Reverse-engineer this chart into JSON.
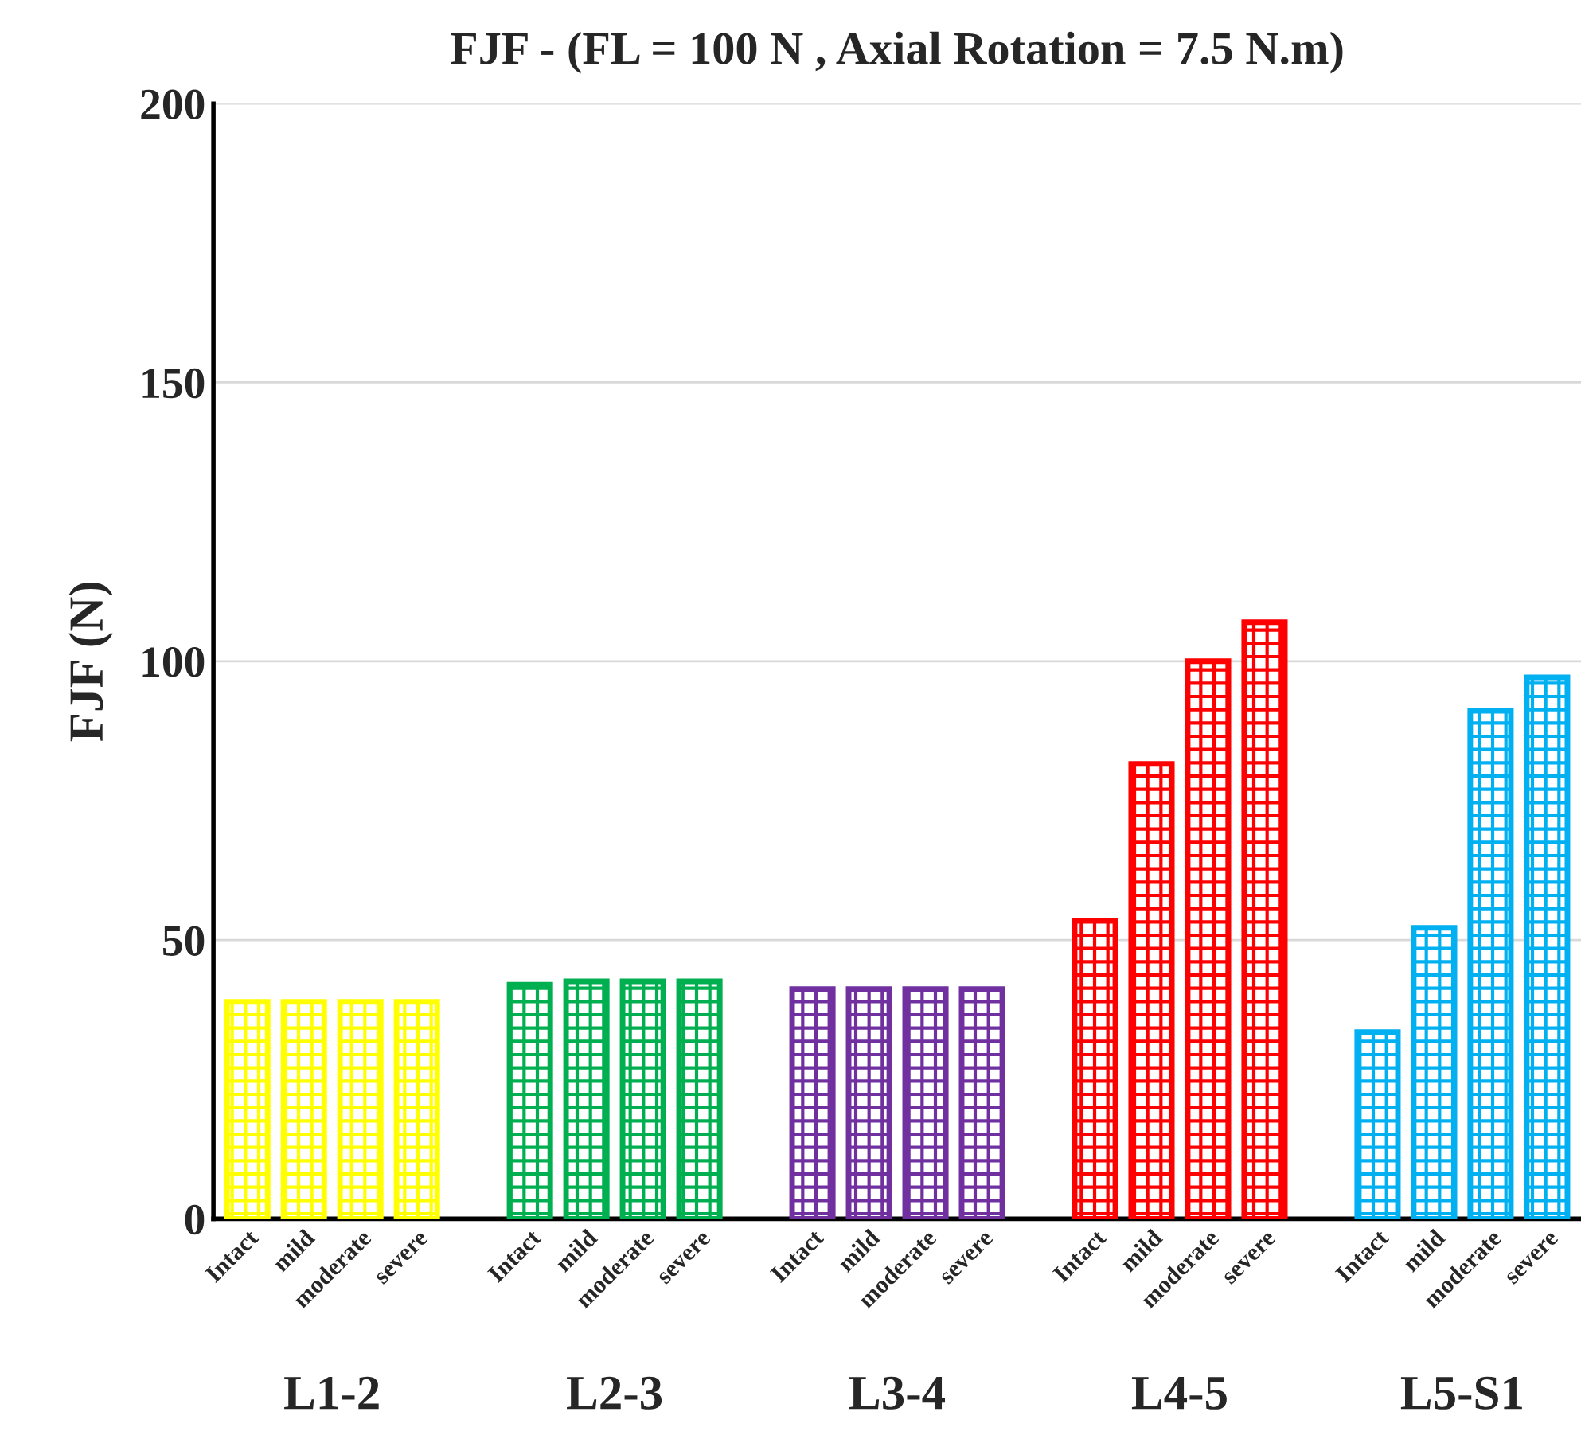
{
  "chart_data": {
    "type": "bar",
    "title": "FJF - (FL = 100 N , Axial Rotation = 7.5 N.m)",
    "ylabel": "FJF (N)",
    "categories": [
      "Intact",
      "mild",
      "moderate",
      "severe",
      null,
      "Intact",
      "mild",
      "moderate",
      "severe",
      null,
      "Intact",
      "mild",
      "moderate",
      "severe",
      null,
      "Intact",
      "mild",
      "moderate",
      "severe",
      null,
      "Intact",
      "mild",
      "moderate",
      "severe"
    ],
    "series": [
      {
        "color": "#ffff00",
        "values": [
          38.9,
          38.9,
          38.9,
          38.9,
          null,
          null,
          null,
          null,
          null,
          null,
          null,
          null,
          null,
          null,
          null,
          null,
          null,
          null,
          null,
          null,
          null,
          null,
          null,
          null
        ]
      },
      {
        "color": "#00b050",
        "values": [
          null,
          null,
          null,
          null,
          null,
          42.0,
          42.6,
          42.6,
          42.6,
          null,
          null,
          null,
          null,
          null,
          null,
          null,
          null,
          null,
          null,
          null,
          null,
          null,
          null,
          null
        ]
      },
      {
        "color": "#7030a0",
        "values": [
          null,
          null,
          null,
          null,
          null,
          null,
          null,
          null,
          null,
          null,
          41.2,
          41.2,
          41.2,
          41.2,
          null,
          null,
          null,
          null,
          null,
          null,
          null,
          null,
          null,
          null
        ]
      },
      {
        "color": "#ff0000",
        "values": [
          null,
          null,
          null,
          null,
          null,
          null,
          null,
          null,
          null,
          null,
          null,
          null,
          null,
          null,
          null,
          53.5,
          81.6,
          100,
          107,
          null,
          null,
          null,
          null,
          null
        ]
      },
      {
        "color": "#00b0f0",
        "values": [
          null,
          null,
          null,
          null,
          null,
          null,
          null,
          null,
          null,
          null,
          null,
          null,
          null,
          null,
          null,
          null,
          null,
          null,
          null,
          null,
          33.5,
          52.2,
          91.1,
          97.1
        ]
      }
    ],
    "ylim": [
      0,
      200
    ],
    "yticks": [
      0,
      50,
      100,
      150,
      200
    ],
    "grid": "y",
    "legend": false,
    "annotations": [
      "L1-2",
      "L2-3",
      "L3-4",
      "L4-5",
      "L5-S1"
    ]
  }
}
